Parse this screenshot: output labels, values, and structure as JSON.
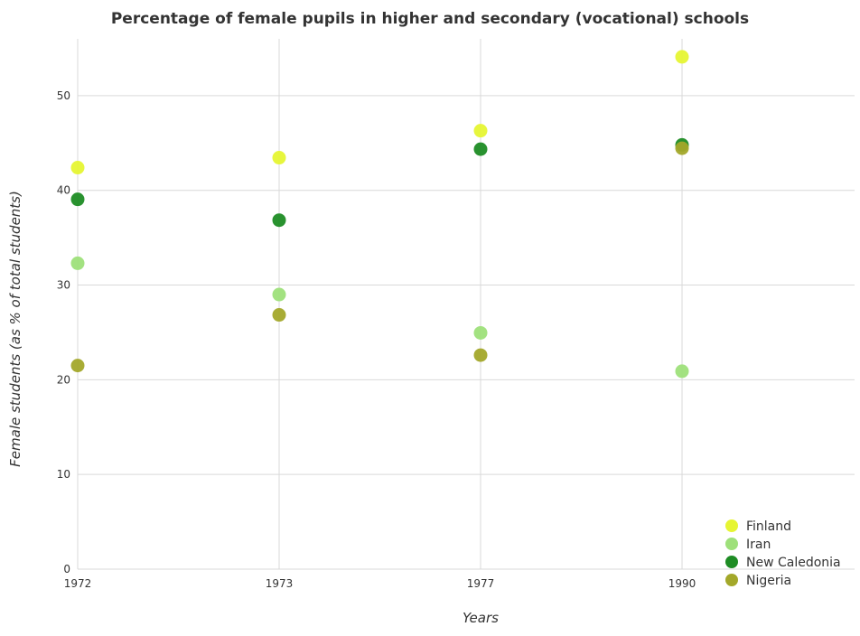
{
  "chart_data": {
    "type": "scatter",
    "title": "Percentage of female pupils in higher and secondary (vocational) schools",
    "xlabel": "Years",
    "ylabel": "Female students (as % of total students)",
    "categories": [
      "1972",
      "1973",
      "1977",
      "1990"
    ],
    "ylim": [
      0,
      56
    ],
    "yticks": [
      "0",
      "10",
      "20",
      "30",
      "40",
      "50"
    ],
    "grid": true,
    "legend_position": "bottom-right",
    "series": [
      {
        "name": "Finland",
        "color": "#e6f533",
        "values": [
          42.4,
          43.45,
          46.3,
          54.1
        ]
      },
      {
        "name": "Iran",
        "color": "#9ee07a",
        "values": [
          32.3,
          29.0,
          24.95,
          20.9
        ]
      },
      {
        "name": "New Caledonia",
        "color": "#1e8c24",
        "values": [
          39.05,
          36.85,
          44.35,
          44.8
        ]
      },
      {
        "name": "Nigeria",
        "color": "#a3a82a",
        "values": [
          21.5,
          26.85,
          22.6,
          44.45
        ]
      }
    ]
  }
}
